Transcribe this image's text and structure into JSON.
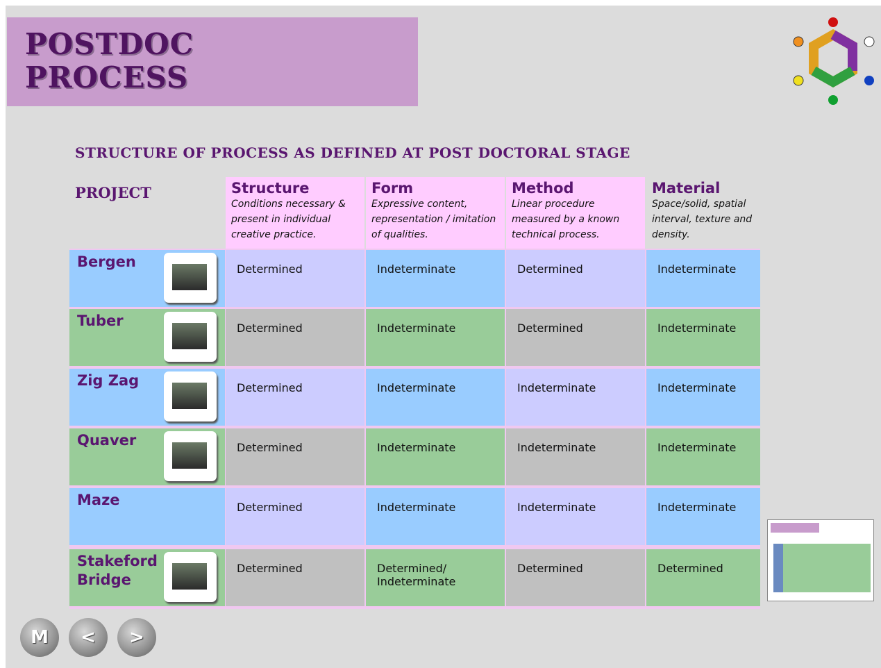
{
  "header": {
    "title_lines": [
      "POSTDOC",
      "PROCESS"
    ]
  },
  "subtitle": "STRUCTURE OF PROCESS AS DEFINED AT POST DOCTORAL STAGE",
  "table": {
    "project_label": "PROJECT",
    "columns": [
      {
        "name": "Structure",
        "description": "Conditions necessary & present in individual creative practice."
      },
      {
        "name": "Form",
        "description": "Expressive content, representation / imitation of qualities."
      },
      {
        "name": "Method",
        "description": "Linear procedure measured by a known technical process."
      },
      {
        "name": "Material",
        "description": "Space/solid, spatial interval, texture and density."
      }
    ],
    "rows": [
      {
        "project": "Bergen",
        "cells": [
          "Determined",
          "Indeterminate",
          "Determined",
          "Indeterminate"
        ]
      },
      {
        "project": "Tuber",
        "cells": [
          "Determined",
          "Indeterminate",
          "Determined",
          "Indeterminate"
        ]
      },
      {
        "project": "Zig Zag",
        "cells": [
          "Determined",
          "Indeterminate",
          "Indeterminate",
          "Indeterminate"
        ]
      },
      {
        "project": "Quaver",
        "cells": [
          "Determined",
          "Indeterminate",
          "Indeterminate",
          "Indeterminate"
        ]
      },
      {
        "project": "Maze",
        "cells": [
          "Determined",
          "Indeterminate",
          "Indeterminate",
          "Indeterminate"
        ]
      },
      {
        "project": "Stakeford Bridge",
        "cells": [
          "Determined",
          "Determined/ Indeterminate",
          "Determined",
          "Determined"
        ]
      }
    ]
  },
  "nav": {
    "buttons": [
      "M",
      "<",
      ">"
    ]
  }
}
